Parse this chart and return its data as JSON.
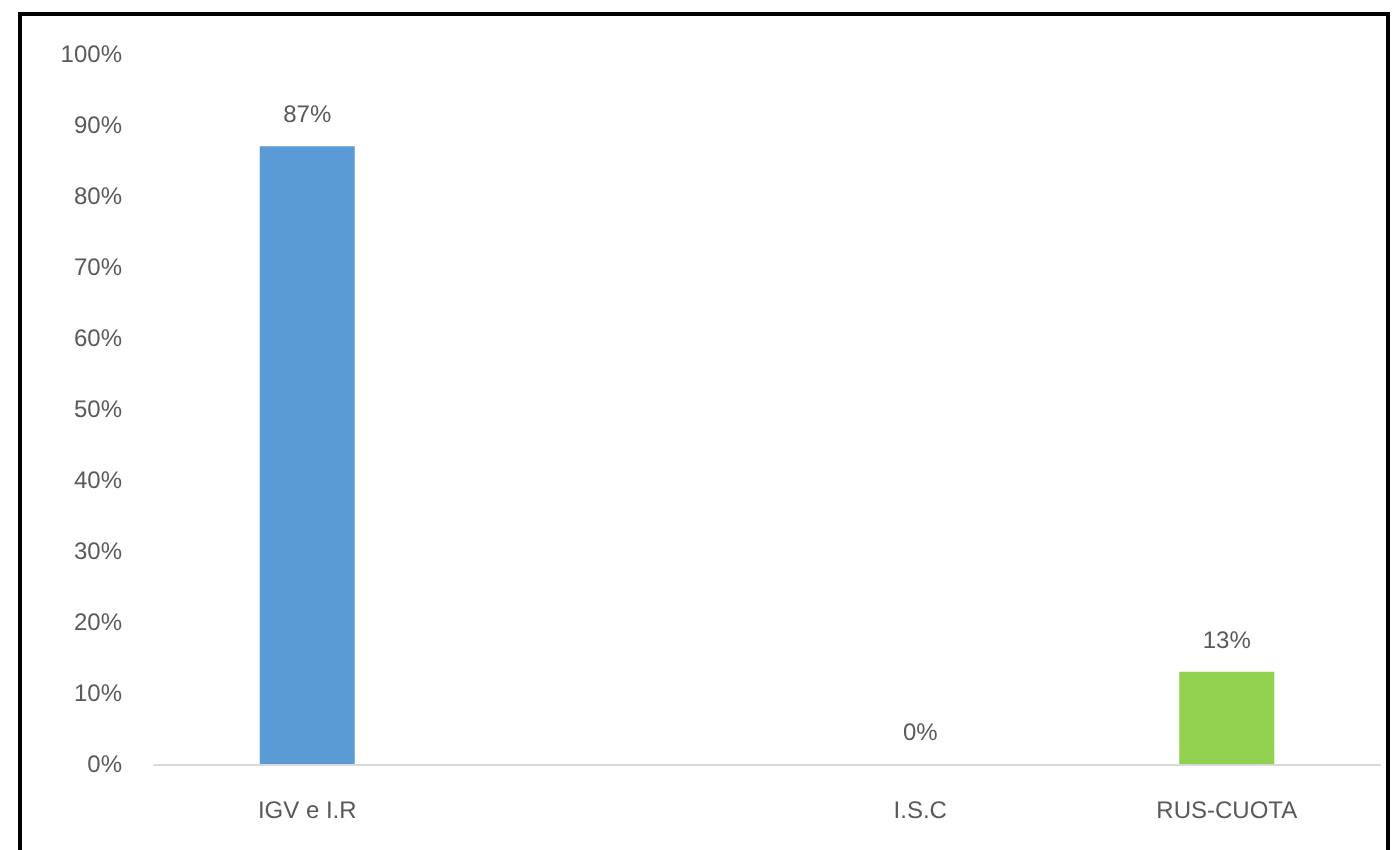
{
  "chart_data": {
    "type": "bar",
    "categories": [
      "IGV e I.R",
      null,
      "I.S.C",
      "RUS-CUOTA"
    ],
    "values": [
      87,
      null,
      0,
      13
    ],
    "colors": [
      "#5b9bd5",
      "#5b9bd5",
      "#a5a5a5",
      "#92d050"
    ],
    "value_labels": [
      "87%",
      null,
      "0%",
      "13%"
    ],
    "ylim": [
      0,
      100
    ],
    "yticks": [
      {
        "value": 0,
        "label": "0%"
      },
      {
        "value": 10,
        "label": "10%"
      },
      {
        "value": 20,
        "label": "20%"
      },
      {
        "value": 30,
        "label": "30%"
      },
      {
        "value": 40,
        "label": "40%"
      },
      {
        "value": 50,
        "label": "50%"
      },
      {
        "value": 60,
        "label": "60%"
      },
      {
        "value": 70,
        "label": "70%"
      },
      {
        "value": 80,
        "label": "80%"
      },
      {
        "value": 90,
        "label": "90%"
      },
      {
        "value": 100,
        "label": "100%"
      }
    ]
  }
}
